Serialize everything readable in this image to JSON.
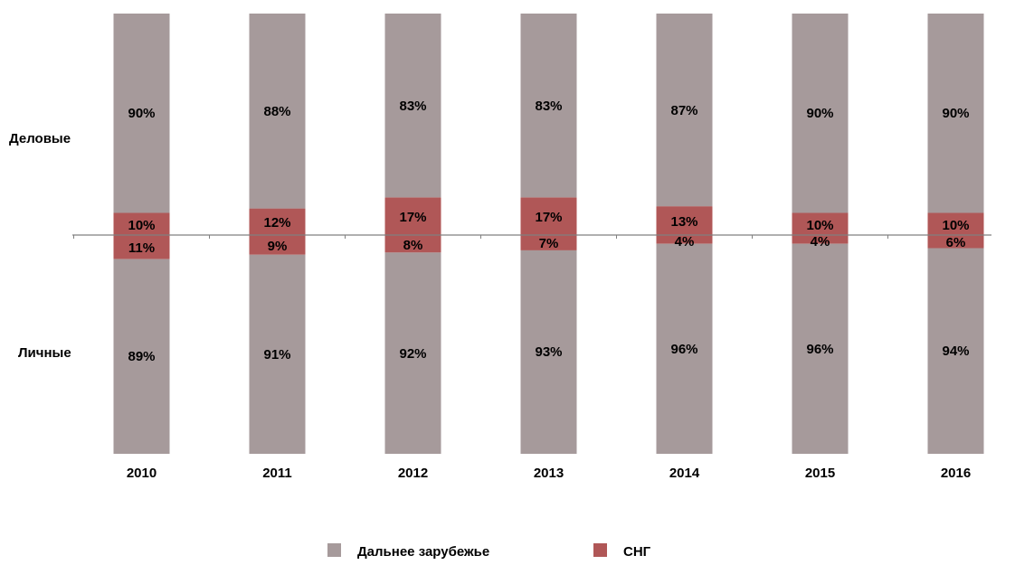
{
  "chart_data": {
    "type": "bar",
    "categories": [
      "2010",
      "2011",
      "2012",
      "2013",
      "2014",
      "2015",
      "2016"
    ],
    "groups": [
      "Деловые",
      "Личные"
    ],
    "series": [
      {
        "name": "Дальнее зарубежье",
        "color": "#a69a9b",
        "values": {
          "Деловые": [
            90,
            88,
            83,
            83,
            87,
            90,
            90
          ],
          "Личные": [
            89,
            91,
            92,
            93,
            96,
            96,
            94
          ]
        }
      },
      {
        "name": "СНГ",
        "color": "#b05757",
        "values": {
          "Деловые": [
            10,
            12,
            17,
            17,
            13,
            10,
            10
          ],
          "Личные": [
            11,
            9,
            8,
            7,
            4,
            4,
            6
          ]
        }
      }
    ],
    "value_suffix": "%",
    "legend_position": "bottom",
    "grid": false
  }
}
